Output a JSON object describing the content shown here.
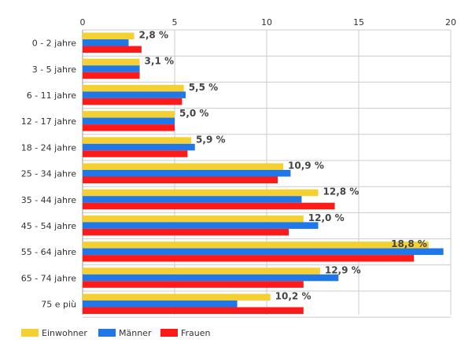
{
  "chart_data": {
    "type": "bar",
    "orientation": "horizontal",
    "title": "",
    "xlabel": "",
    "ylabel": "",
    "xlim": [
      0,
      20
    ],
    "ticks": [
      0,
      5,
      10,
      15,
      20
    ],
    "tick_labels": [
      "0",
      "5",
      "10",
      "15",
      "20"
    ],
    "grid": true,
    "legend_position": "bottom-left",
    "categories": [
      "0 - 2 jahre",
      "3 - 5 jahre",
      "6 - 11 jahre",
      "12 - 17 jahre",
      "18 - 24 jahre",
      "25 - 34 jahre",
      "35 - 44 jahre",
      "45 - 54 jahre",
      "55 - 64 jahre",
      "65 - 74 jahre",
      "75 e più"
    ],
    "series": [
      {
        "name": "Einwohner",
        "color": "#f5d033",
        "values": [
          2.8,
          3.1,
          5.5,
          5.0,
          5.9,
          10.9,
          12.8,
          12.0,
          18.8,
          12.9,
          10.2
        ]
      },
      {
        "name": "Männer",
        "color": "#1f77e8",
        "values": [
          2.5,
          3.1,
          5.6,
          5.0,
          6.1,
          11.3,
          11.9,
          12.8,
          19.6,
          13.9,
          8.4
        ]
      },
      {
        "name": "Frauen",
        "color": "#ff1a1a",
        "values": [
          3.2,
          3.1,
          5.4,
          5.0,
          5.7,
          10.6,
          13.7,
          11.2,
          18.0,
          12.0,
          12.0
        ]
      }
    ],
    "data_labels": [
      "2,8 %",
      "3,1 %",
      "5,5 %",
      "5,0 %",
      "5,9 %",
      "10,9 %",
      "12,8 %",
      "12,0 %",
      "18,8 %",
      "12,9 %",
      "10,2 %"
    ]
  }
}
